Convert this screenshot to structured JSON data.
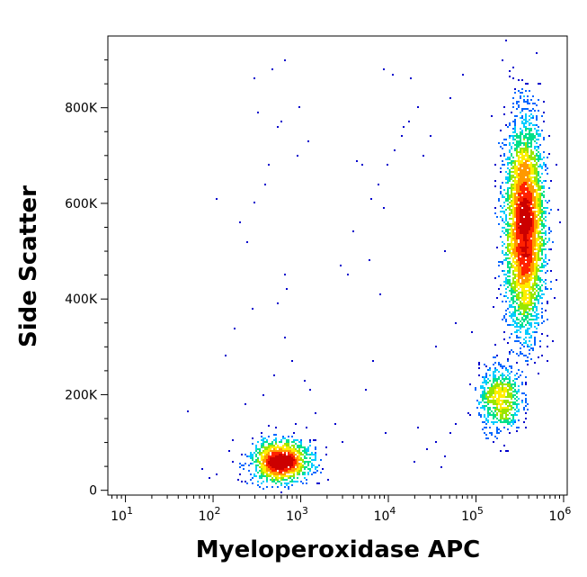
{
  "chart_data": {
    "type": "scatter",
    "title": "",
    "xlabel": "Myeloperoxidase APC",
    "ylabel": "Side Scatter",
    "x_scale": "log",
    "xlim": [
      6.3,
      1100000
    ],
    "ylim": [
      -10000,
      950000
    ],
    "x_ticks": [
      {
        "value": 10,
        "base": "10",
        "exp": "1"
      },
      {
        "value": 100,
        "base": "10",
        "exp": "2"
      },
      {
        "value": 1000,
        "base": "10",
        "exp": "3"
      },
      {
        "value": 10000,
        "base": "10",
        "exp": "4"
      },
      {
        "value": 100000,
        "base": "10",
        "exp": "5"
      },
      {
        "value": 1000000,
        "base": "10",
        "exp": "6"
      }
    ],
    "y_ticks": [
      {
        "value": 0,
        "label": "0"
      },
      {
        "value": 200000,
        "label": "200K"
      },
      {
        "value": 400000,
        "label": "400K"
      },
      {
        "value": 600000,
        "label": "600K"
      },
      {
        "value": 800000,
        "label": "800K"
      }
    ],
    "grid": false,
    "legend": "none",
    "color_scale": [
      "#0000cc",
      "#0066ff",
      "#00ccff",
      "#00e08a",
      "#99e600",
      "#ffee00",
      "#ff9900",
      "#ff2200",
      "#cc0000"
    ],
    "populations": [
      {
        "x_center": 600,
        "y_center": 60000,
        "x_spread_decades": 0.17,
        "y_spread": 22000,
        "count": 1400
      },
      {
        "x_center": 360000,
        "y_center": 550000,
        "x_spread_decades": 0.11,
        "y_spread": 110000,
        "count": 4200
      },
      {
        "x_center": 190000,
        "y_center": 190000,
        "x_spread_decades": 0.12,
        "y_spread": 35000,
        "count": 700
      }
    ],
    "sparse_events": [
      [
        290,
        860000
      ],
      [
        320,
        790000
      ],
      [
        560,
        760000
      ],
      [
        600,
        770000
      ],
      [
        900,
        700000
      ],
      [
        400,
        640000
      ],
      [
        430,
        680000
      ],
      [
        300,
        600000
      ],
      [
        200,
        560000
      ],
      [
        110,
        610000
      ],
      [
        250,
        520000
      ],
      [
        650,
        450000
      ],
      [
        700,
        420000
      ],
      [
        550,
        390000
      ],
      [
        5000,
        680000
      ],
      [
        4400,
        690000
      ],
      [
        6500,
        610000
      ],
      [
        7800,
        640000
      ],
      [
        8700,
        590000
      ],
      [
        9600,
        680000
      ],
      [
        12000,
        710000
      ],
      [
        14000,
        740000
      ],
      [
        17000,
        770000
      ],
      [
        22000,
        800000
      ],
      [
        18000,
        860000
      ],
      [
        11000,
        870000
      ],
      [
        15000,
        760000
      ],
      [
        25000,
        700000
      ],
      [
        9000,
        880000
      ],
      [
        4000,
        540000
      ],
      [
        6000,
        480000
      ],
      [
        3500,
        450000
      ],
      [
        2800,
        470000
      ],
      [
        30000,
        740000
      ],
      [
        50000,
        820000
      ],
      [
        70000,
        870000
      ],
      [
        45000,
        500000
      ],
      [
        8000,
        410000
      ],
      [
        6600,
        270000
      ],
      [
        5500,
        210000
      ],
      [
        9500,
        120000
      ],
      [
        20000,
        60000
      ],
      [
        40000,
        50000
      ],
      [
        22000,
        130000
      ],
      [
        35000,
        300000
      ],
      [
        60000,
        350000
      ],
      [
        90000,
        330000
      ],
      [
        3000,
        100000
      ],
      [
        2500,
        140000
      ],
      [
        2000,
        90000
      ],
      [
        1500,
        160000
      ],
      [
        1300,
        210000
      ],
      [
        1100,
        230000
      ],
      [
        800,
        270000
      ],
      [
        650,
        320000
      ],
      [
        500,
        240000
      ],
      [
        380,
        200000
      ],
      [
        230,
        180000
      ],
      [
        180,
        340000
      ],
      [
        140,
        280000
      ],
      [
        52,
        165000
      ],
      [
        75,
        45000
      ],
      [
        90,
        25000
      ],
      [
        110,
        35000
      ],
      [
        280,
        380000
      ],
      [
        1200,
        730000
      ],
      [
        950,
        800000
      ],
      [
        480,
        880000
      ],
      [
        650,
        900000
      ],
      [
        35000,
        100000
      ],
      [
        50000,
        120000
      ],
      [
        60000,
        140000
      ],
      [
        80000,
        160000
      ],
      [
        45000,
        70000
      ],
      [
        28000,
        85000
      ]
    ]
  }
}
